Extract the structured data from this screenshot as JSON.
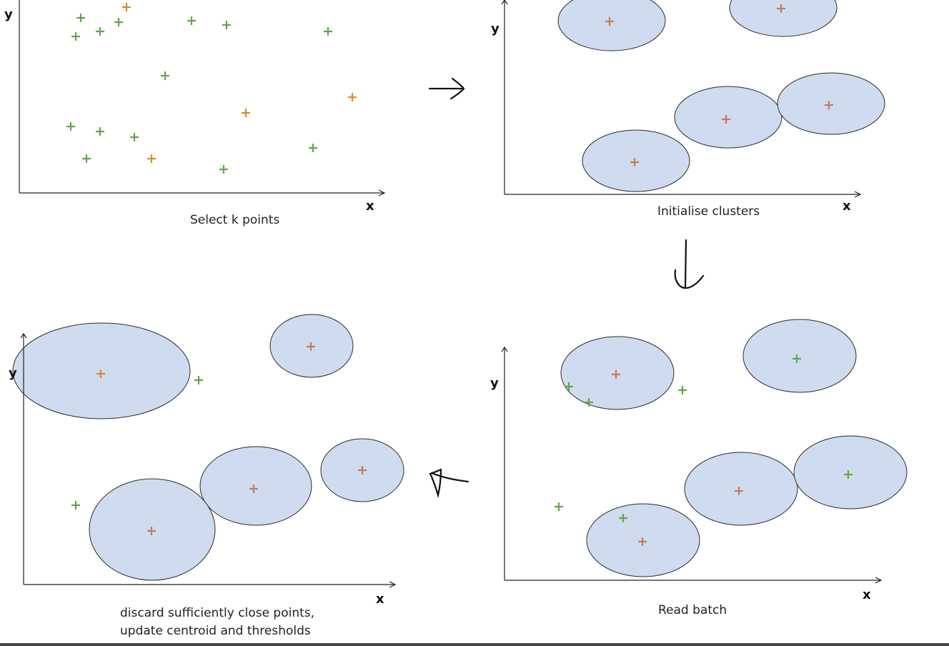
{
  "colors": {
    "cluster_fill": "#cfdcef",
    "cluster_stroke": "#2b2b2b",
    "green_point": "#5fa84a",
    "orange_point": "#d98a2f",
    "centroid_point": "#c87a55",
    "axis": "#222222"
  },
  "panels": [
    {
      "id": "select",
      "caption": "Select k points",
      "axis_x": "x",
      "axis_y": "y"
    },
    {
      "id": "init",
      "caption": "Initialise clusters",
      "axis_x": "x",
      "axis_y": "y"
    },
    {
      "id": "read",
      "caption": "Read batch",
      "axis_x": "x",
      "axis_y": "y"
    },
    {
      "id": "discard",
      "caption_line1": "discard sufficiently close points,",
      "caption_line2": "update centroid and thresholds",
      "axis_x": "x",
      "axis_y": "y"
    }
  ]
}
